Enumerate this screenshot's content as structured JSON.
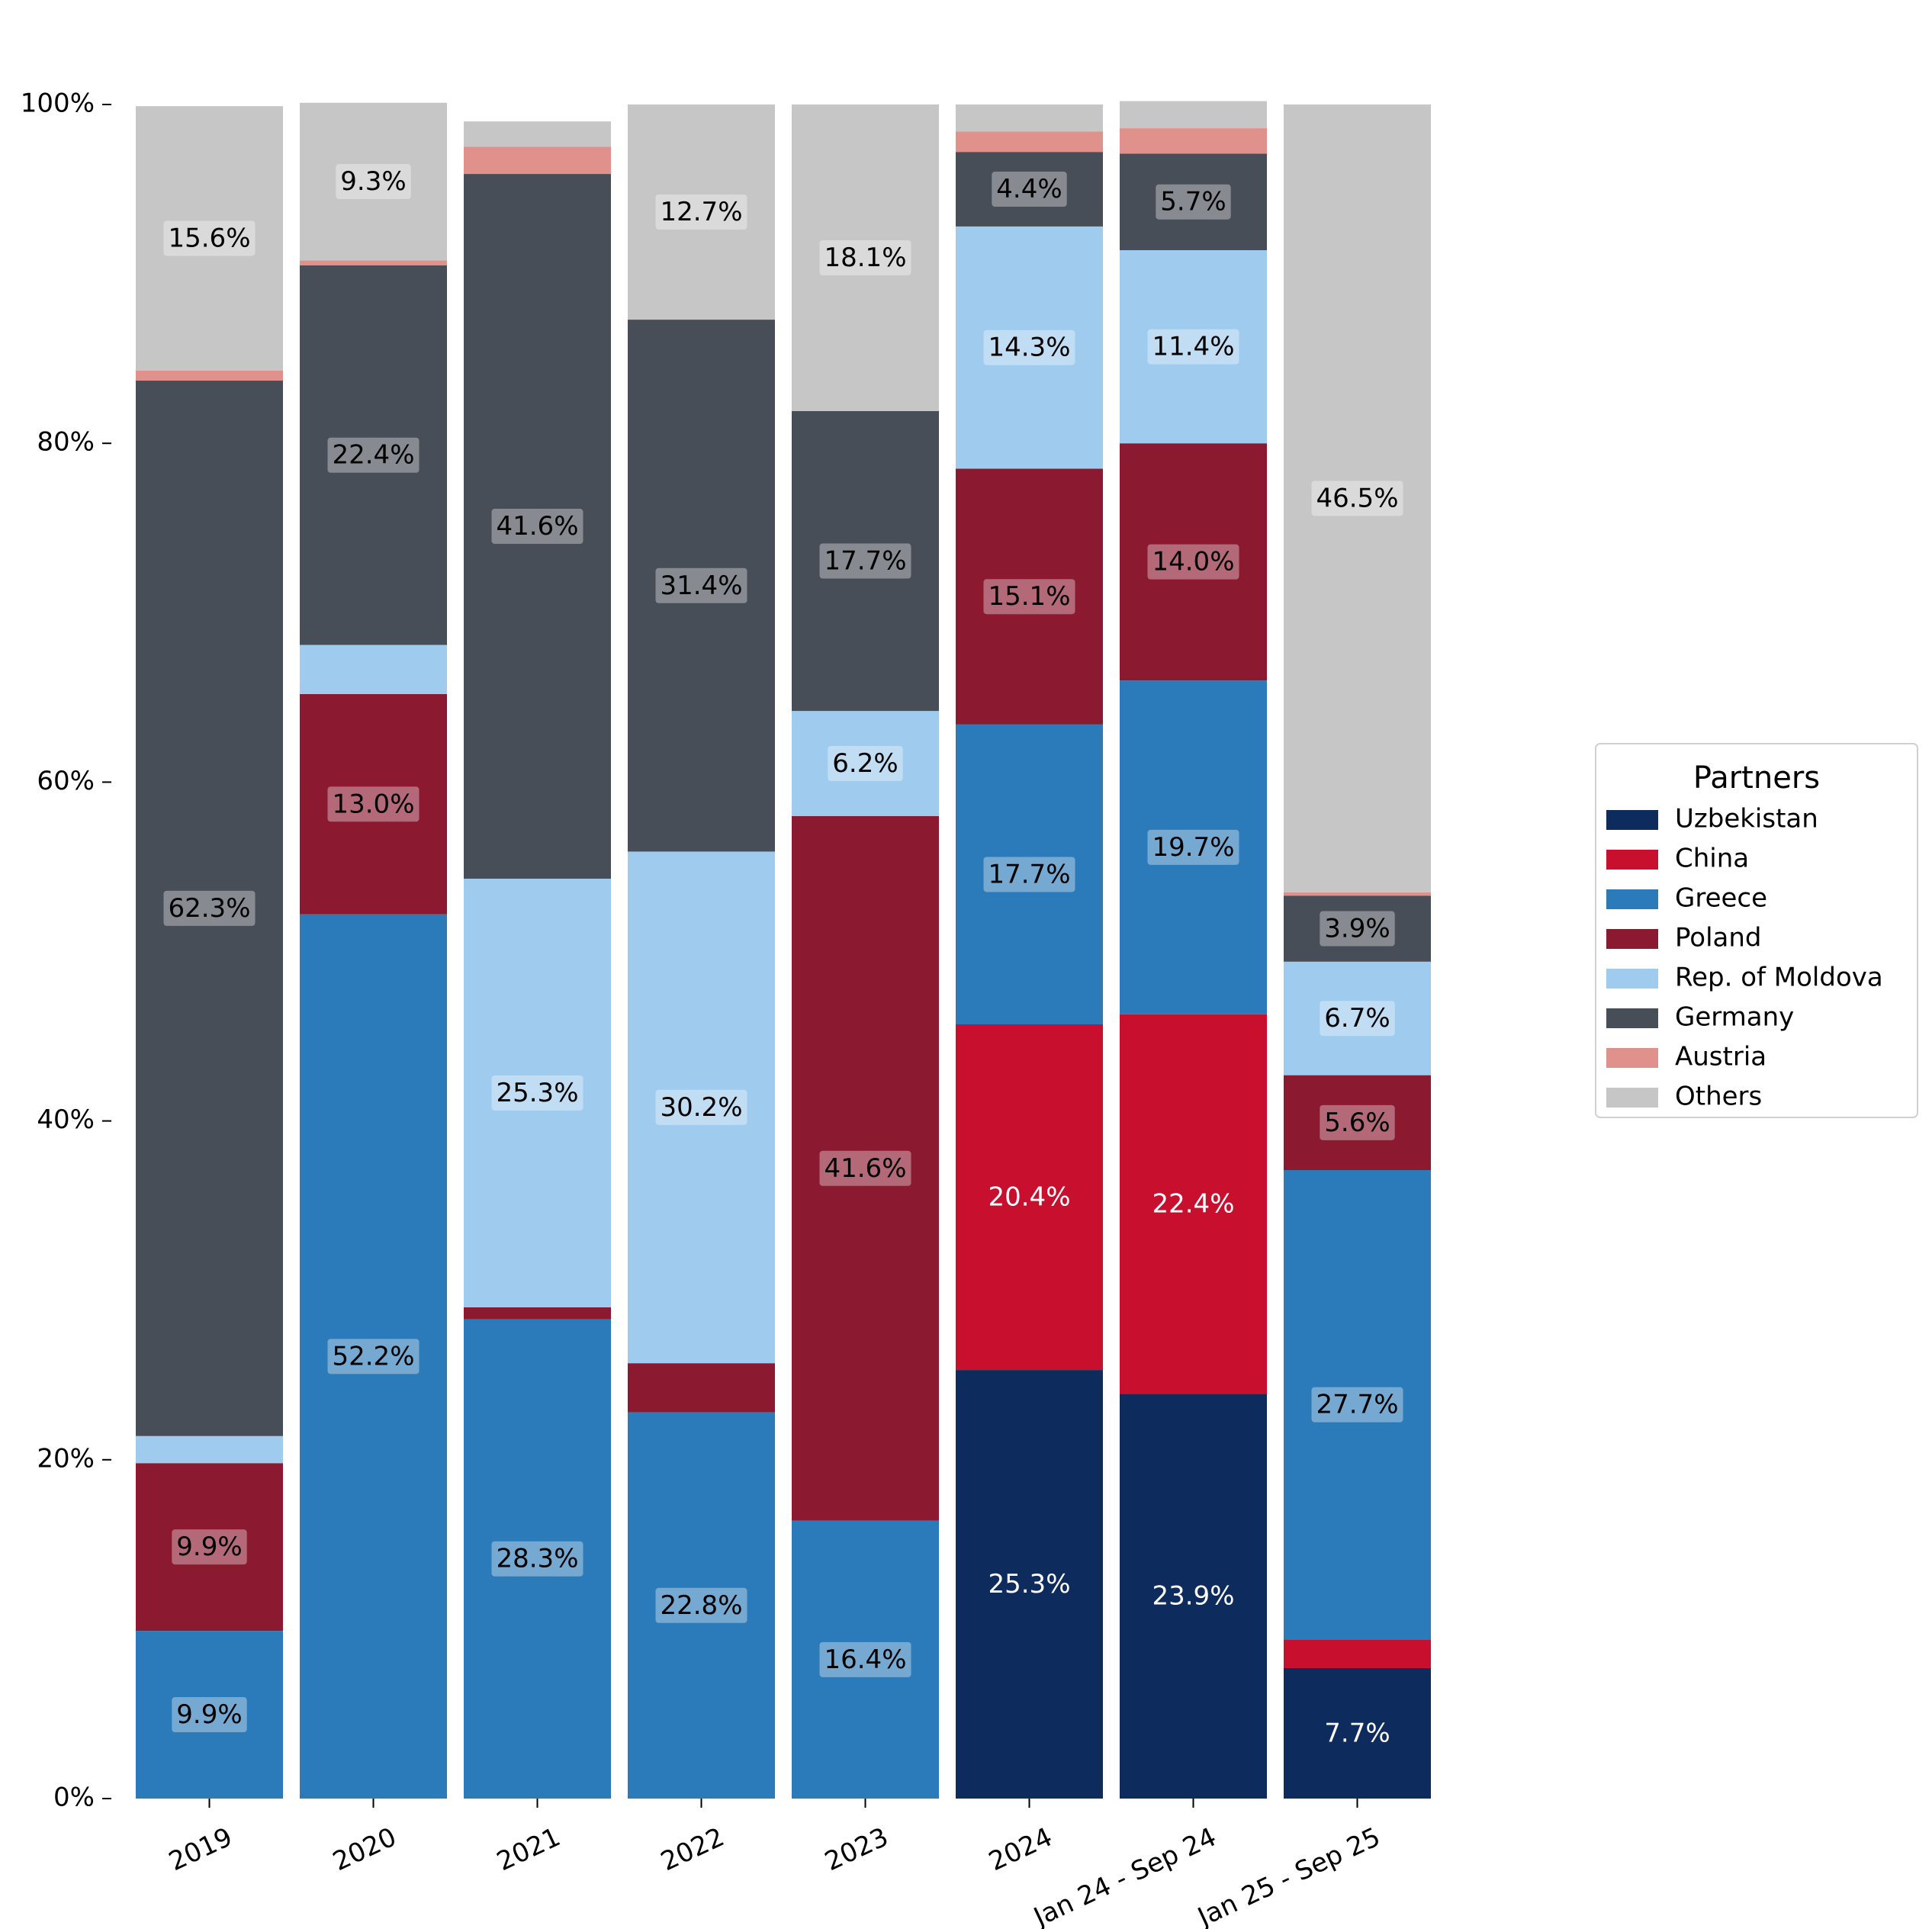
{
  "chart_data": {
    "type": "bar",
    "stacked": true,
    "title": "",
    "xlabel": "",
    "ylabel": "",
    "ylim": [
      0,
      100
    ],
    "yticks": [
      "0%",
      "20%",
      "40%",
      "60%",
      "80%",
      "100%"
    ],
    "categories": [
      "2019",
      "2020",
      "2021",
      "2022",
      "2023",
      "2024",
      "Jan 24 - Sep 24",
      "Jan 25 - Sep 25"
    ],
    "legend": {
      "title": "Partners",
      "position": "center-right"
    },
    "series": [
      {
        "name": "Uzbekistan",
        "color": "#0d2b5c",
        "label_color": "#ffffff",
        "label_box": false,
        "values": [
          0,
          0,
          0,
          0,
          0,
          25.3,
          23.9,
          7.7
        ],
        "labels": [
          "",
          "",
          "",
          "",
          "",
          "25.3%",
          "23.9%",
          "7.7%"
        ]
      },
      {
        "name": "China",
        "color": "#c8102e",
        "label_color": "#ffffff",
        "label_box": false,
        "values": [
          0,
          0,
          0,
          0,
          0,
          20.4,
          22.4,
          1.7
        ],
        "labels": [
          "",
          "",
          "",
          "",
          "",
          "20.4%",
          "22.4%",
          ""
        ]
      },
      {
        "name": "Greece",
        "color": "#2b7bba",
        "label_color": "#000000",
        "label_box": true,
        "values": [
          9.9,
          52.2,
          28.3,
          22.8,
          16.4,
          17.7,
          19.7,
          27.7
        ],
        "labels": [
          "9.9%",
          "52.2%",
          "28.3%",
          "22.8%",
          "16.4%",
          "17.7%",
          "19.7%",
          "27.7%"
        ]
      },
      {
        "name": "Poland",
        "color": "#8b1a30",
        "label_color": "#000000",
        "label_box": true,
        "values": [
          9.9,
          13.0,
          0.7,
          2.9,
          41.6,
          15.1,
          14.0,
          5.6
        ],
        "labels": [
          "9.9%",
          "13.0%",
          "",
          "",
          "41.6%",
          "15.1%",
          "14.0%",
          "5.6%"
        ]
      },
      {
        "name": "Rep. of Moldova",
        "color": "#9ecbee",
        "label_color": "#000000",
        "label_box": true,
        "values": [
          1.6,
          2.9,
          25.3,
          30.2,
          6.2,
          14.3,
          11.4,
          6.7
        ],
        "labels": [
          "",
          "",
          "25.3%",
          "30.2%",
          "6.2%",
          "14.3%",
          "11.4%",
          "6.7%"
        ]
      },
      {
        "name": "Germany",
        "color": "#474e57",
        "label_color": "#000000",
        "label_box": true,
        "values": [
          62.3,
          22.4,
          41.6,
          31.4,
          17.7,
          4.4,
          5.7,
          3.9
        ],
        "labels": [
          "62.3%",
          "22.4%",
          "41.6%",
          "31.4%",
          "17.7%",
          "4.4%",
          "5.7%",
          "3.9%"
        ]
      },
      {
        "name": "Austria",
        "color": "#e0918c",
        "label_color": "#000000",
        "label_box": true,
        "values": [
          0.6,
          0.3,
          1.6,
          0,
          0,
          1.2,
          1.5,
          0.2
        ],
        "labels": [
          "",
          "",
          "",
          "",
          "",
          "",
          "",
          ""
        ]
      },
      {
        "name": "Others",
        "color": "#c6c6c6",
        "label_color": "#000000",
        "label_box": true,
        "values": [
          15.6,
          9.3,
          1.5,
          12.7,
          18.1,
          1.6,
          1.6,
          46.5
        ],
        "labels": [
          "15.6%",
          "9.3%",
          "",
          "12.7%",
          "18.1%",
          "",
          "",
          "46.5%"
        ]
      }
    ]
  }
}
